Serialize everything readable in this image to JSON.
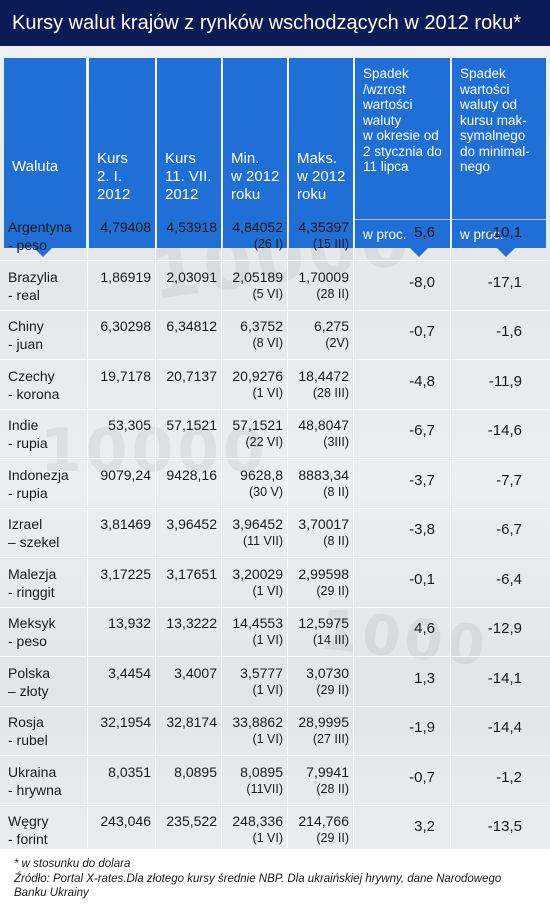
{
  "title": "Kursy walut krajów z rynków wschodzących w 2012 roku*",
  "headers": {
    "waluta": "Waluta",
    "kurs1": "Kurs\n2. I.\n2012",
    "kurs2": "Kurs\n11. VII.\n2012",
    "min": "Min.\nw 2012\nroku",
    "max": "Maks.\nw 2012\nroku",
    "spadek1": "Spadek\n/wzrost\nwartości\nwaluty\nw okresie od\n2 stycznia do\n11 lipca",
    "spadek2": "Spadek\nwartości\nwaluty od\nkursu mak-\nsymalnego\ndo minimal-\nnego",
    "unit1": "w proc.",
    "unit2": "w proc."
  },
  "rows": [
    {
      "country": "Argentyna",
      "currency": "- peso",
      "k1": "4,79408",
      "k2": "4,53918",
      "min": "4,84052",
      "min_date": "(26 I)",
      "max": "4,35397",
      "max_date": "(15 III)",
      "p1": "5,6",
      "p2": "-10,1"
    },
    {
      "country": "Brazylia",
      "currency": "- real",
      "k1": "1,86919",
      "k2": "2,03091",
      "min": "2,05189",
      "min_date": "(5 VI)",
      "max": "1,70009",
      "max_date": "(28 II)",
      "p1": "-8,0",
      "p2": "-17,1"
    },
    {
      "country": "Chiny",
      "currency": "- juan",
      "k1": "6,30298",
      "k2": "6,34812",
      "min": "6,3752",
      "min_date": "(8 VI)",
      "max": "6,275",
      "max_date": "(2V)",
      "p1": "-0,7",
      "p2": "-1,6"
    },
    {
      "country": "Czechy",
      "currency": "- korona",
      "k1": "19,7178",
      "k2": "20,7137",
      "min": "20,9276",
      "min_date": "(1 VI)",
      "max": "18,4472",
      "max_date": "(28 III)",
      "p1": "-4,8",
      "p2": "-11,9"
    },
    {
      "country": "Indie",
      "currency": "- rupia",
      "k1": "53,305",
      "k2": "57,1521",
      "min": "57,1521",
      "min_date": "(22 VI)",
      "max": "48,8047",
      "max_date": "(3III)",
      "p1": "-6,7",
      "p2": "-14,6"
    },
    {
      "country": "Indonezja",
      "currency": "- rupia",
      "k1": "9079,24",
      "k2": "9428,16",
      "min": "9628,8",
      "min_date": "(30 V)",
      "max": "8883,34",
      "max_date": "(8 II)",
      "p1": "-3,7",
      "p2": "-7,7"
    },
    {
      "country": "Izrael",
      "currency": "– szekel",
      "k1": "3,81469",
      "k2": "3,96452",
      "min": "3,96452",
      "min_date": "(11 VII)",
      "max": "3,70017",
      "max_date": "(8 II)",
      "p1": "-3,8",
      "p2": "-6,7"
    },
    {
      "country": "Malezja",
      "currency": "- ringgit",
      "k1": "3,17225",
      "k2": "3,17651",
      "min": "3,20029",
      "min_date": "(1 VI)",
      "max": "2,99598",
      "max_date": "(29 II)",
      "p1": "-0,1",
      "p2": "-6,4"
    },
    {
      "country": "Meksyk",
      "currency": "- peso",
      "k1": "13,932",
      "k2": "13,3222",
      "min": "14,4553",
      "min_date": "(1 VI)",
      "max": "12,5975",
      "max_date": "(14 III)",
      "p1": "4,6",
      "p2": "-12,9"
    },
    {
      "country": "Polska",
      "currency": "– złoty",
      "k1": "3,4454",
      "k2": "3,4007",
      "min": "3,5777",
      "min_date": "(1 VI)",
      "max": "3,0730",
      "max_date": "(29 II)",
      "p1": "1,3",
      "p2": "-14,1"
    },
    {
      "country": "Rosja",
      "currency": "- rubel",
      "k1": "32,1954",
      "k2": "32,8174",
      "min": "33,8862",
      "min_date": "(1 VI)",
      "max": "28,9995",
      "max_date": "(27 III)",
      "p1": "-1,9",
      "p2": "-14,4"
    },
    {
      "country": "Ukraina",
      "currency": "- hrywna",
      "k1": "8,0351",
      "k2": "8,0895",
      "min": "8,0895",
      "min_date": "(11VII)",
      "max": "7,9941",
      "max_date": "(28 II)",
      "p1": "-0,7",
      "p2": "-1,2"
    },
    {
      "country": "Węgry",
      "currency": "- forint",
      "k1": "243,046",
      "k2": "235,522",
      "min": "248,336",
      "min_date": "(1 VI)",
      "max": "214,766",
      "max_date": "(29 II)",
      "p1": "3,2",
      "p2": "-13,5"
    }
  ],
  "footer": {
    "note": "* w stosunku do dolara",
    "source": "Źródło: Portal X-rates.Dla złotego kursy średnie NBP. Dla ukraińskiej hrywny, dane Narodowego Banku Ukrainy"
  }
}
